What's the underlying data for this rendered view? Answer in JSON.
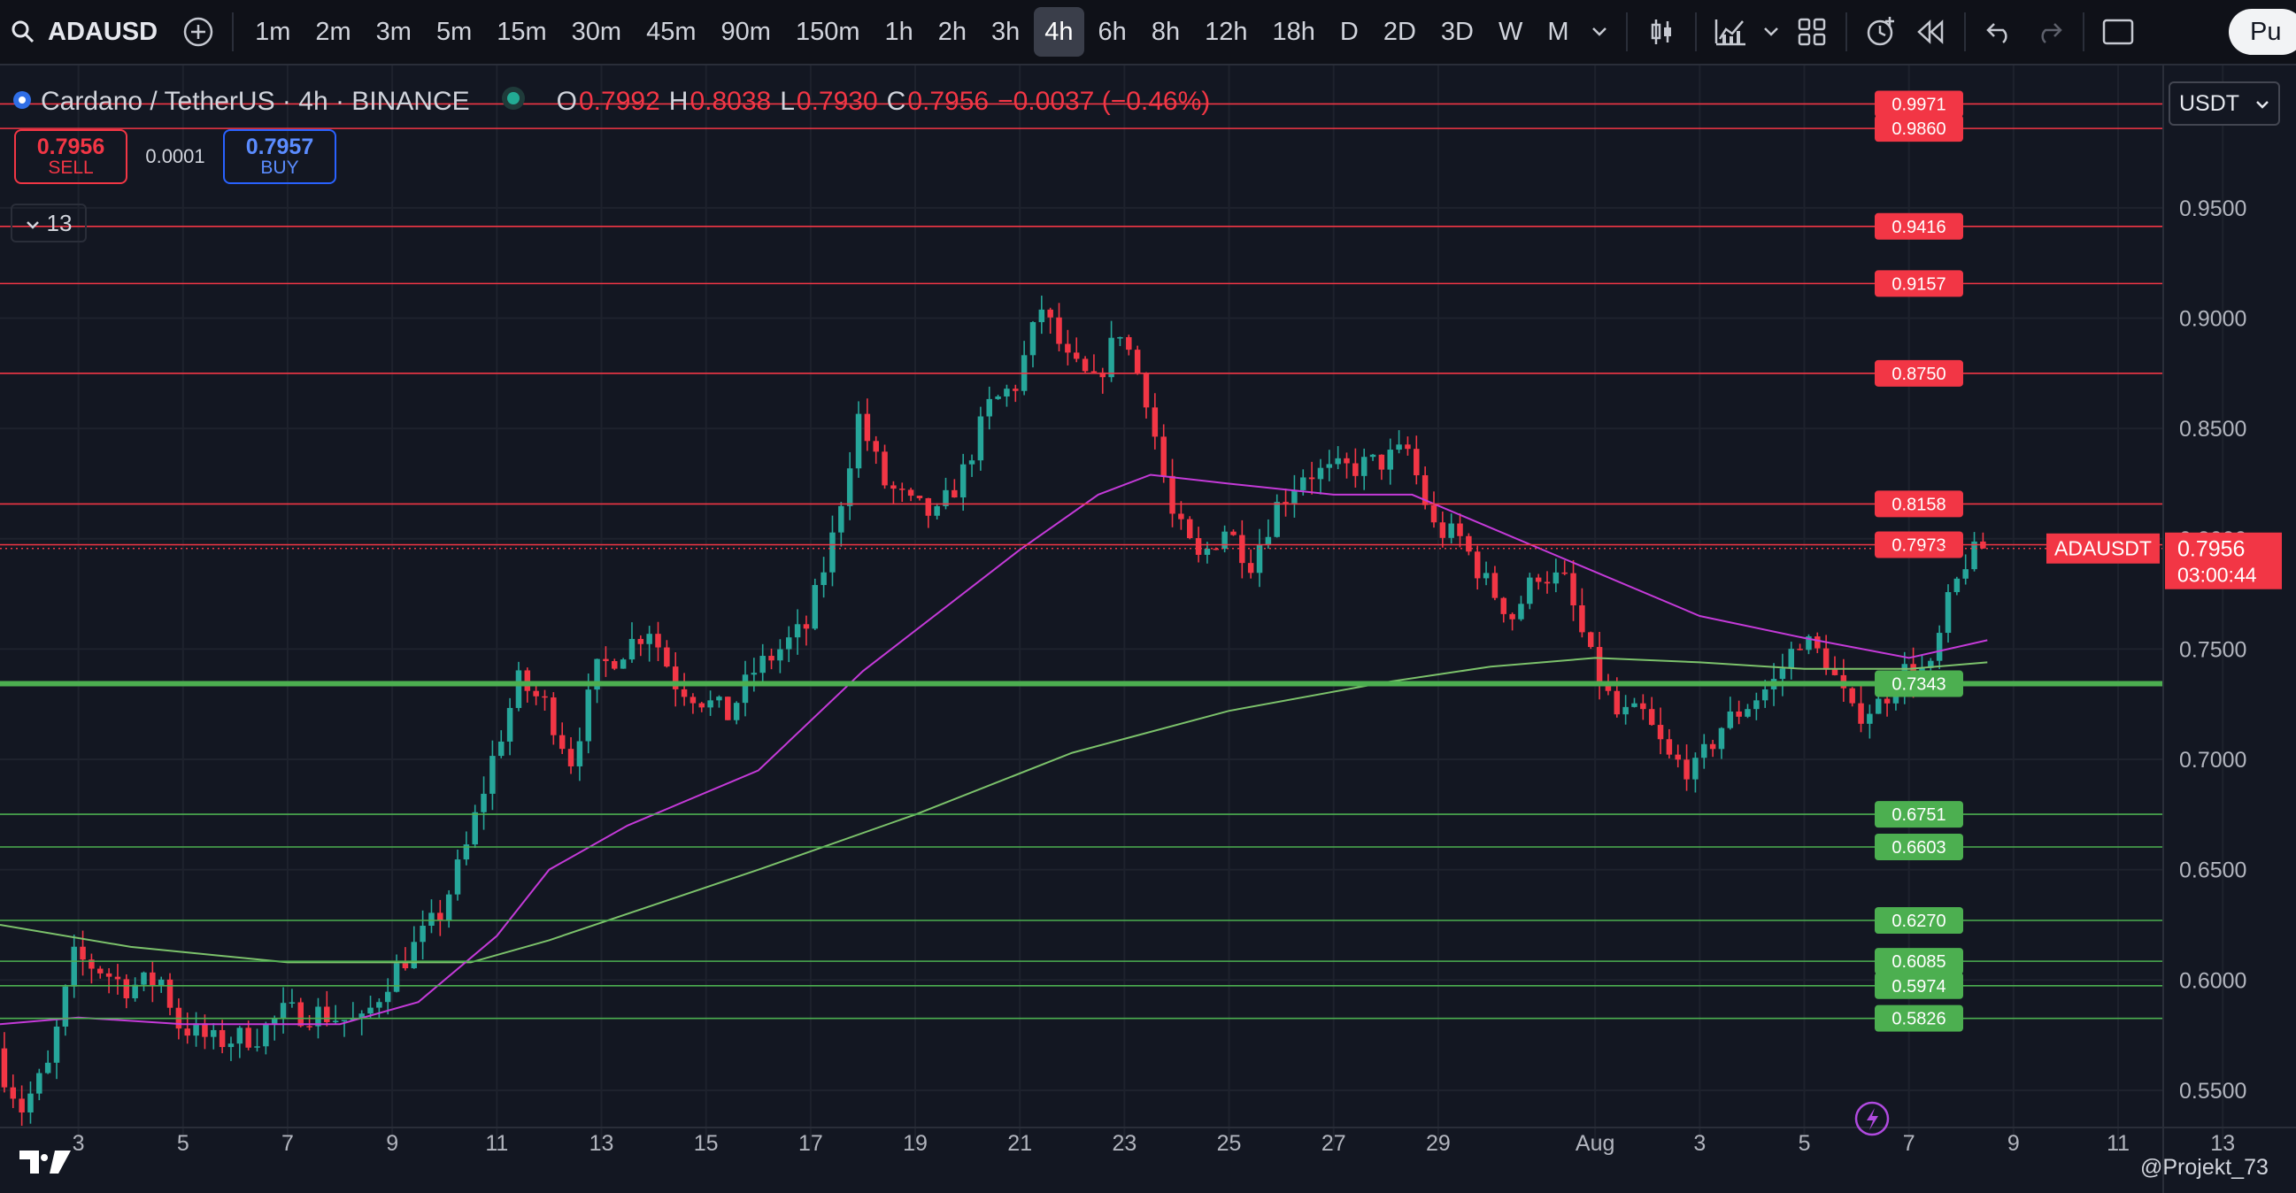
{
  "toolbar": {
    "symbol": "ADAUSD",
    "intervals": [
      "1m",
      "2m",
      "3m",
      "5m",
      "15m",
      "30m",
      "45m",
      "90m",
      "150m",
      "1h",
      "2h",
      "3h",
      "4h",
      "6h",
      "8h",
      "12h",
      "18h",
      "D",
      "2D",
      "3D",
      "W",
      "M"
    ],
    "active_interval": "4h",
    "publish_label": "Pu"
  },
  "legend": {
    "title": "Cardano / TetherUS · 4h · BINANCE",
    "o_label": "O",
    "o": "0.7992",
    "h_label": "H",
    "h": "0.8038",
    "l_label": "L",
    "l": "0.7930",
    "c_label": "C",
    "c": "0.7956",
    "change": "−0.0037 (−0.46%)"
  },
  "trade": {
    "sell_price": "0.7956",
    "sell_label": "SELL",
    "spread": "0.0001",
    "buy_price": "0.7957",
    "buy_label": "BUY"
  },
  "indicators_count": "13",
  "currency": "USDT",
  "watermark": "@Projekt_73",
  "colors": {
    "background": "#131722",
    "up": "#26a69a",
    "down": "#f23645",
    "resistance": "#f23645",
    "support": "#4caf50",
    "ma_fast": "#c43ad8",
    "ma_slow": "#7cc26b"
  },
  "chart_data": {
    "type": "candlestick",
    "title": "Cardano / TetherUS · 4h · BINANCE",
    "y_axis": {
      "ticks": [
        "0.9500",
        "0.9000",
        "0.8500",
        "0.8000",
        "0.7500",
        "0.7000",
        "0.6500",
        "0.6000",
        "0.5500"
      ],
      "range": [
        0.5227,
        1.0025
      ],
      "side": "right"
    },
    "x_axis": {
      "ticks": [
        "3",
        "5",
        "7",
        "9",
        "11",
        "13",
        "15",
        "17",
        "19",
        "21",
        "23",
        "25",
        "27",
        "29",
        "Aug",
        "3",
        "5",
        "7",
        "9",
        "11",
        "13"
      ],
      "tick_dates": [
        "Jul 3",
        "Jul 5",
        "Jul 7",
        "Jul 9",
        "Jul 11",
        "Jul 13",
        "Jul 15",
        "Jul 17",
        "Jul 19",
        "Jul 21",
        "Jul 23",
        "Jul 25",
        "Jul 27",
        "Jul 29",
        "Aug 1",
        "Aug 3",
        "Aug 5",
        "Aug 7",
        "Aug 9",
        "Aug 11",
        "Aug 13"
      ],
      "range": [
        "Jul 1 12:00",
        "Aug 14 08:00"
      ]
    },
    "key_points": [
      {
        "date": "Jul 1 12:00",
        "price": 0.565
      },
      {
        "date": "Jul 2 00:00",
        "price": 0.542
      },
      {
        "date": "Jul 2 12:00",
        "price": 0.56
      },
      {
        "date": "Jul 3 00:00",
        "price": 0.61
      },
      {
        "date": "Jul 3 12:00",
        "price": 0.605
      },
      {
        "date": "Jul 4 00:00",
        "price": 0.597
      },
      {
        "date": "Jul 4 16:00",
        "price": 0.6
      },
      {
        "date": "Jul 5 00:00",
        "price": 0.58
      },
      {
        "date": "Jul 5 16:00",
        "price": 0.572
      },
      {
        "date": "Jul 6 12:00",
        "price": 0.575
      },
      {
        "date": "Jul 7 00:00",
        "price": 0.585
      },
      {
        "date": "Jul 7 16:00",
        "price": 0.585
      },
      {
        "date": "Jul 8 12:00",
        "price": 0.58
      },
      {
        "date": "Jul 9 00:00",
        "price": 0.6
      },
      {
        "date": "Jul 10 00:00",
        "price": 0.63
      },
      {
        "date": "Jul 10 12:00",
        "price": 0.66
      },
      {
        "date": "Jul 11 00:00",
        "price": 0.7
      },
      {
        "date": "Jul 11 12:00",
        "price": 0.735
      },
      {
        "date": "Jul 12 00:00",
        "price": 0.725
      },
      {
        "date": "Jul 12 12:00",
        "price": 0.7
      },
      {
        "date": "Jul 13 00:00",
        "price": 0.74
      },
      {
        "date": "Jul 13 12:00",
        "price": 0.75
      },
      {
        "date": "Jul 14 00:00",
        "price": 0.76
      },
      {
        "date": "Jul 14 12:00",
        "price": 0.735
      },
      {
        "date": "Jul 15 12:00",
        "price": 0.72
      },
      {
        "date": "Jul 16 00:00",
        "price": 0.74
      },
      {
        "date": "Jul 16 12:00",
        "price": 0.75
      },
      {
        "date": "Jul 17 00:00",
        "price": 0.76
      },
      {
        "date": "Jul 17 12:00",
        "price": 0.8
      },
      {
        "date": "Jul 18 00:00",
        "price": 0.855
      },
      {
        "date": "Jul 18 12:00",
        "price": 0.825
      },
      {
        "date": "Jul 19 00:00",
        "price": 0.815
      },
      {
        "date": "Jul 19 12:00",
        "price": 0.81
      },
      {
        "date": "Jul 20 00:00",
        "price": 0.83
      },
      {
        "date": "Jul 20 12:00",
        "price": 0.86
      },
      {
        "date": "Jul 21 00:00",
        "price": 0.87
      },
      {
        "date": "Jul 21 12:00",
        "price": 0.905
      },
      {
        "date": "Jul 22 00:00",
        "price": 0.88
      },
      {
        "date": "Jul 22 12:00",
        "price": 0.87
      },
      {
        "date": "Jul 23 00:00",
        "price": 0.895
      },
      {
        "date": "Jul 23 12:00",
        "price": 0.865
      },
      {
        "date": "Jul 24 00:00",
        "price": 0.81
      },
      {
        "date": "Jul 24 12:00",
        "price": 0.79
      },
      {
        "date": "Jul 25 00:00",
        "price": 0.805
      },
      {
        "date": "Jul 25 12:00",
        "price": 0.79
      },
      {
        "date": "Jul 26 00:00",
        "price": 0.815
      },
      {
        "date": "Jul 26 12:00",
        "price": 0.83
      },
      {
        "date": "Jul 27 00:00",
        "price": 0.83
      },
      {
        "date": "Jul 28 00:00",
        "price": 0.835
      },
      {
        "date": "Jul 28 12:00",
        "price": 0.84
      },
      {
        "date": "Jul 29 00:00",
        "price": 0.805
      },
      {
        "date": "Jul 29 12:00",
        "price": 0.8
      },
      {
        "date": "Jul 30 00:00",
        "price": 0.78
      },
      {
        "date": "Jul 30 12:00",
        "price": 0.765
      },
      {
        "date": "Jul 31 00:00",
        "price": 0.785
      },
      {
        "date": "Jul 31 12:00",
        "price": 0.78
      },
      {
        "date": "Aug 1 00:00",
        "price": 0.745
      },
      {
        "date": "Aug 1 12:00",
        "price": 0.72
      },
      {
        "date": "Aug 2 00:00",
        "price": 0.72
      },
      {
        "date": "Aug 2 12:00",
        "price": 0.7
      },
      {
        "date": "Aug 3 00:00",
        "price": 0.695
      },
      {
        "date": "Aug 3 12:00",
        "price": 0.715
      },
      {
        "date": "Aug 4 00:00",
        "price": 0.725
      },
      {
        "date": "Aug 4 12:00",
        "price": 0.735
      },
      {
        "date": "Aug 5 00:00",
        "price": 0.755
      },
      {
        "date": "Aug 5 12:00",
        "price": 0.745
      },
      {
        "date": "Aug 6 00:00",
        "price": 0.72
      },
      {
        "date": "Aug 6 12:00",
        "price": 0.725
      },
      {
        "date": "Aug 7 00:00",
        "price": 0.74
      },
      {
        "date": "Aug 7 12:00",
        "price": 0.74
      },
      {
        "date": "Aug 7 20:00",
        "price": 0.77
      },
      {
        "date": "Aug 8 04:00",
        "price": 0.79
      },
      {
        "date": "Aug 8 12:00",
        "price": 0.7956
      }
    ],
    "ma_fast": [
      {
        "date": "Jul 1 12:00",
        "price": 0.58
      },
      {
        "date": "Jul 3 00:00",
        "price": 0.583
      },
      {
        "date": "Jul 5 00:00",
        "price": 0.58
      },
      {
        "date": "Jul 8 00:00",
        "price": 0.58
      },
      {
        "date": "Jul 9 12:00",
        "price": 0.59
      },
      {
        "date": "Jul 11 00:00",
        "price": 0.62
      },
      {
        "date": "Jul 12 00:00",
        "price": 0.65
      },
      {
        "date": "Jul 13 12:00",
        "price": 0.67
      },
      {
        "date": "Jul 16 00:00",
        "price": 0.695
      },
      {
        "date": "Jul 18 00:00",
        "price": 0.74
      },
      {
        "date": "Jul 21 00:00",
        "price": 0.795
      },
      {
        "date": "Jul 22 12:00",
        "price": 0.82
      },
      {
        "date": "Jul 23 12:00",
        "price": 0.829
      },
      {
        "date": "Jul 25 00:00",
        "price": 0.825
      },
      {
        "date": "Jul 27 00:00",
        "price": 0.82
      },
      {
        "date": "Jul 28 12:00",
        "price": 0.82
      },
      {
        "date": "Jul 30 00:00",
        "price": 0.805
      },
      {
        "date": "Aug 1 00:00",
        "price": 0.785
      },
      {
        "date": "Aug 3 00:00",
        "price": 0.765
      },
      {
        "date": "Aug 5 00:00",
        "price": 0.755
      },
      {
        "date": "Aug 7 00:00",
        "price": 0.746
      },
      {
        "date": "Aug 8 12:00",
        "price": 0.754
      }
    ],
    "ma_slow": [
      {
        "date": "Jul 1 12:00",
        "price": 0.625
      },
      {
        "date": "Jul 4 00:00",
        "price": 0.615
      },
      {
        "date": "Jul 7 00:00",
        "price": 0.608
      },
      {
        "date": "Jul 10 12:00",
        "price": 0.608
      },
      {
        "date": "Jul 12 00:00",
        "price": 0.618
      },
      {
        "date": "Jul 16 00:00",
        "price": 0.65
      },
      {
        "date": "Jul 19 00:00",
        "price": 0.675
      },
      {
        "date": "Jul 22 00:00",
        "price": 0.703
      },
      {
        "date": "Jul 25 00:00",
        "price": 0.722
      },
      {
        "date": "Jul 28 00:00",
        "price": 0.735
      },
      {
        "date": "Jul 30 00:00",
        "price": 0.742
      },
      {
        "date": "Aug 1 00:00",
        "price": 0.746
      },
      {
        "date": "Aug 3 00:00",
        "price": 0.744
      },
      {
        "date": "Aug 5 00:00",
        "price": 0.741
      },
      {
        "date": "Aug 7 00:00",
        "price": 0.741
      },
      {
        "date": "Aug 8 12:00",
        "price": 0.744
      }
    ],
    "resistance_levels": [
      "0.9971",
      "0.9860",
      "0.9416",
      "0.9157",
      "0.8750",
      "0.8158",
      "0.7973"
    ],
    "support_levels": [
      "0.7343",
      "0.6751",
      "0.6603",
      "0.6270",
      "0.6085",
      "0.5974",
      "0.5826"
    ],
    "current_price": {
      "symbol": "ADAUSDT",
      "price": "0.7956",
      "countdown": "03:00:44"
    }
  }
}
